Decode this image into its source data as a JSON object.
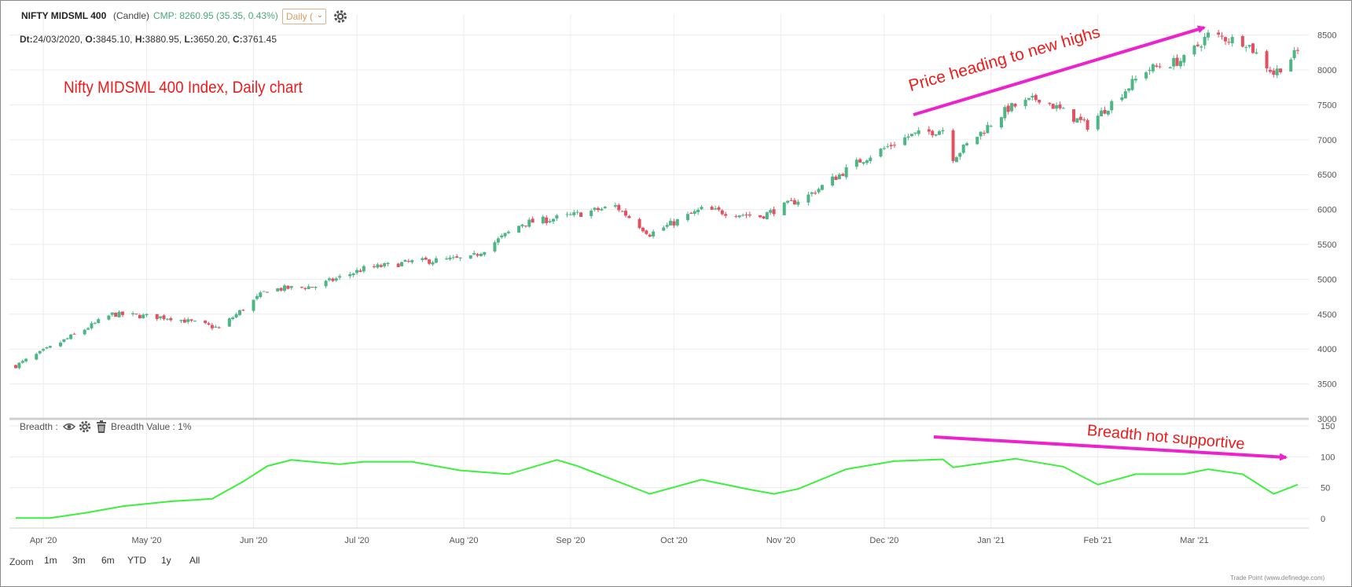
{
  "header": {
    "symbol": "NIFTY MIDSML 400",
    "chart_type": "(Candle)",
    "cmp": "CMP: 8260.95 (35.35, 0.43%)",
    "interval": "Daily (",
    "ohlc": {
      "dt": "24/03/2020",
      "o": "3845.10",
      "h": "3880.95",
      "l": "3650.20",
      "c": "3761.45"
    },
    "ohlc_labels": {
      "dt": "Dt:",
      "o": "O:",
      "h": "H:",
      "l": "L:",
      "c": "C:"
    }
  },
  "annotations": {
    "title": "Nifty MIDSML 400 Index, Daily chart",
    "price": "Price heading to new highs",
    "breadth": "Breadth not supportive"
  },
  "indicator": {
    "name": "Breadth :",
    "value_label": "Breadth Value : 1%"
  },
  "zoom": {
    "label": "Zoom",
    "buttons": [
      "1m",
      "3m",
      "6m",
      "YTD",
      "1y",
      "All"
    ]
  },
  "credit": "Trade Point (www.definedge.com)",
  "colors": {
    "up": "#4cb685",
    "down": "#e4505f",
    "breadth_line": "#3cf03c",
    "arrow": "#ee22cc",
    "annotation": "#ee1c1c"
  },
  "chart_data": [
    {
      "type": "candlestick",
      "title": "NIFTY MIDSML 400",
      "date_range": [
        "2020-03-24",
        "2021-03-31"
      ],
      "x_ticks": [
        "Apr '20",
        "May '20",
        "Jun '20",
        "Jul '20",
        "Aug '20",
        "Sep '20",
        "Oct '20",
        "Nov '20",
        "Dec '20",
        "Jan '21",
        "Feb '21",
        "Mar '21"
      ],
      "y_ticks": [
        3000,
        3500,
        4000,
        4500,
        5000,
        5500,
        6000,
        6500,
        7000,
        7500,
        8000,
        8500
      ],
      "ylim": [
        3000,
        8800
      ],
      "grid": true,
      "close_series": [
        {
          "date": "2020-03-24",
          "close": 3761
        },
        {
          "date": "2020-04-08",
          "close": 4150
        },
        {
          "date": "2020-04-21",
          "close": 4500
        },
        {
          "date": "2020-05-08",
          "close": 4450
        },
        {
          "date": "2020-05-22",
          "close": 4300
        },
        {
          "date": "2020-06-05",
          "close": 4850
        },
        {
          "date": "2020-06-19",
          "close": 4900
        },
        {
          "date": "2020-07-03",
          "close": 5150
        },
        {
          "date": "2020-07-17",
          "close": 5250
        },
        {
          "date": "2020-08-03",
          "close": 5300
        },
        {
          "date": "2020-08-18",
          "close": 5800
        },
        {
          "date": "2020-08-31",
          "close": 5900
        },
        {
          "date": "2020-09-14",
          "close": 6050
        },
        {
          "date": "2020-09-24",
          "close": 5650
        },
        {
          "date": "2020-10-09",
          "close": 6000
        },
        {
          "date": "2020-10-26",
          "close": 5900
        },
        {
          "date": "2020-11-09",
          "close": 6200
        },
        {
          "date": "2020-11-24",
          "close": 6700
        },
        {
          "date": "2020-12-08",
          "close": 7050
        },
        {
          "date": "2020-12-18",
          "close": 7150
        },
        {
          "date": "2020-12-21",
          "close": 6750
        },
        {
          "date": "2021-01-06",
          "close": 7450
        },
        {
          "date": "2021-01-15",
          "close": 7600
        },
        {
          "date": "2021-01-29",
          "close": 7200
        },
        {
          "date": "2021-02-15",
          "close": 8000
        },
        {
          "date": "2021-02-26",
          "close": 8150
        },
        {
          "date": "2021-03-05",
          "close": 8500
        },
        {
          "date": "2021-03-16",
          "close": 8400
        },
        {
          "date": "2021-03-24",
          "close": 7950
        },
        {
          "date": "2021-03-31",
          "close": 8261
        }
      ]
    },
    {
      "type": "line",
      "title": "Breadth",
      "date_range": [
        "2020-03-24",
        "2021-03-31"
      ],
      "y_ticks": [
        0,
        50,
        100,
        150
      ],
      "ylim": [
        0,
        150
      ],
      "x": [
        "2020-03-24",
        "2020-04-03",
        "2020-04-14",
        "2020-04-24",
        "2020-05-08",
        "2020-05-20",
        "2020-05-29",
        "2020-06-05",
        "2020-06-12",
        "2020-06-26",
        "2020-07-03",
        "2020-07-17",
        "2020-07-31",
        "2020-08-14",
        "2020-08-28",
        "2020-09-03",
        "2020-09-17",
        "2020-09-24",
        "2020-10-09",
        "2020-10-23",
        "2020-10-30",
        "2020-11-06",
        "2020-11-20",
        "2020-12-04",
        "2020-12-18",
        "2020-12-21",
        "2021-01-08",
        "2021-01-22",
        "2021-02-01",
        "2021-02-12",
        "2021-02-26",
        "2021-03-05",
        "2021-03-15",
        "2021-03-24",
        "2021-03-31"
      ],
      "values": [
        1,
        1,
        10,
        20,
        28,
        32,
        60,
        85,
        95,
        88,
        92,
        92,
        78,
        72,
        95,
        85,
        55,
        40,
        63,
        47,
        40,
        48,
        80,
        93,
        96,
        83,
        97,
        84,
        55,
        72,
        72,
        80,
        72,
        40,
        55
      ]
    }
  ]
}
